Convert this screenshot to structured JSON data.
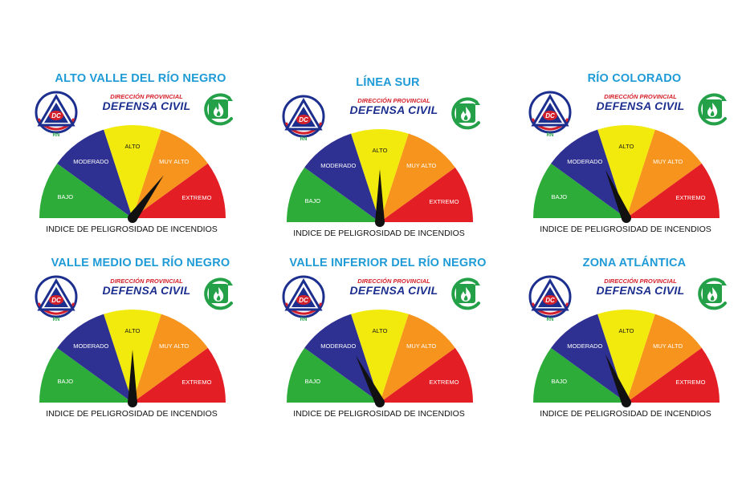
{
  "footer_text": "INDICE DE PELIGROSIDAD DE INCENDIOS",
  "brand": {
    "top_line": "DIRECCIÓN PROVINCIAL",
    "main_line": "DEFENSA CIVIL",
    "badge_text": "DC",
    "badge_sub": "RN"
  },
  "levels": [
    "BAJO",
    "MODERADO",
    "ALTO",
    "MUY ALTO",
    "EXTREMO"
  ],
  "level_colors": [
    "#2eac3a",
    "#2e3192",
    "#f2ea0c",
    "#f7941d",
    "#e31e25"
  ],
  "accent_colors": {
    "title": "#1e9bd6",
    "brand_red": "#d4202a",
    "brand_blue": "#1c2f8f",
    "fire_green": "#24a148"
  },
  "icons": {
    "civil_defense": "dc-triangle-logo-icon",
    "fire": "fire-leaf-icon",
    "needle": "gauge-needle-icon"
  },
  "regions": [
    {
      "name": "ALTO VALLE DEL RÍO NEGRO",
      "current_level": "MUY ALTO",
      "needle_value": 0.7
    },
    {
      "name": "LÍNEA SUR",
      "current_level": "ALTO",
      "needle_value": 0.5
    },
    {
      "name": "RÍO COLORADO",
      "current_level": "MODERADO",
      "needle_value": 0.37
    },
    {
      "name": "VALLE MEDIO DEL RÍO NEGRO",
      "current_level": "ALTO",
      "needle_value": 0.5
    },
    {
      "name": "VALLE INFERIOR DEL RÍO NEGRO",
      "current_level": "MODERADO",
      "needle_value": 0.35
    },
    {
      "name": "ZONA ATLÁNTICA",
      "current_level": "MODERADO",
      "needle_value": 0.37
    }
  ]
}
